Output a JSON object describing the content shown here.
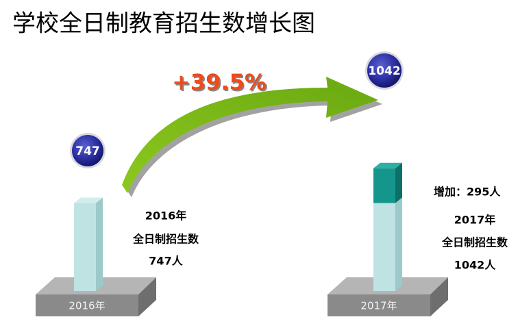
{
  "chart_data": {
    "type": "bar",
    "title": "学校全日制教育招生数增长图",
    "categories": [
      "2016年",
      "2017年"
    ],
    "series": [
      {
        "color": "#bfe3e3",
        "values": [
          747,
          747
        ]
      },
      {
        "color": "#14968c",
        "values": [
          null,
          295
        ],
        "value_labels": [
          null,
          "增加：295人"
        ]
      }
    ],
    "totals": [
      747,
      1042
    ],
    "growth": {
      "value": 39.5,
      "label": "+39.5%"
    },
    "captions": [
      [
        "2016年",
        "全日制招生数",
        "747人"
      ],
      [
        "2017年",
        "全日制招生数",
        "1042人"
      ]
    ]
  }
}
